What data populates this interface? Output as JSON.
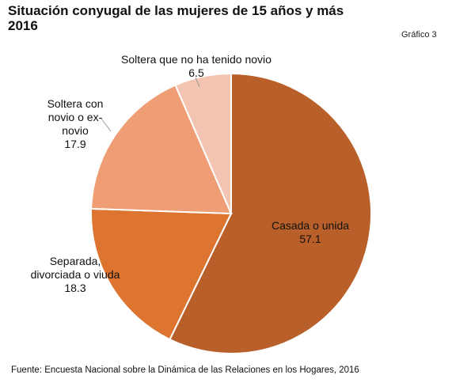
{
  "header": {
    "title_line1": "Situación conyugal de las mujeres de 15 años y más",
    "title_line2": "2016",
    "figure_badge": "Gráfico 3"
  },
  "chart_data": {
    "type": "pie",
    "title": "Situación conyugal de las mujeres de 15 años y más 2016",
    "start": "top, clockwise",
    "slices": [
      {
        "label_lines": [
          "Casada o unida"
        ],
        "value": 57.1,
        "value_text": "57.1",
        "color": "#b9602a"
      },
      {
        "label_lines": [
          "Separada,",
          "divorciada o viuda"
        ],
        "value": 18.3,
        "value_text": "18.3",
        "color": "#dd742f"
      },
      {
        "label_lines": [
          "Soltera con",
          "novio o ex-",
          "novio"
        ],
        "value": 17.9,
        "value_text": "17.9",
        "color": "#ef9d74"
      },
      {
        "label_lines": [
          "Soltera que no ha tenido novio"
        ],
        "value": 6.5,
        "value_text": "6.5",
        "color": "#f4c4b2"
      }
    ]
  },
  "footer": {
    "source": "Fuente: Encuesta Nacional sobre la Dinámica de las Relaciones en los Hogares, 2016"
  }
}
